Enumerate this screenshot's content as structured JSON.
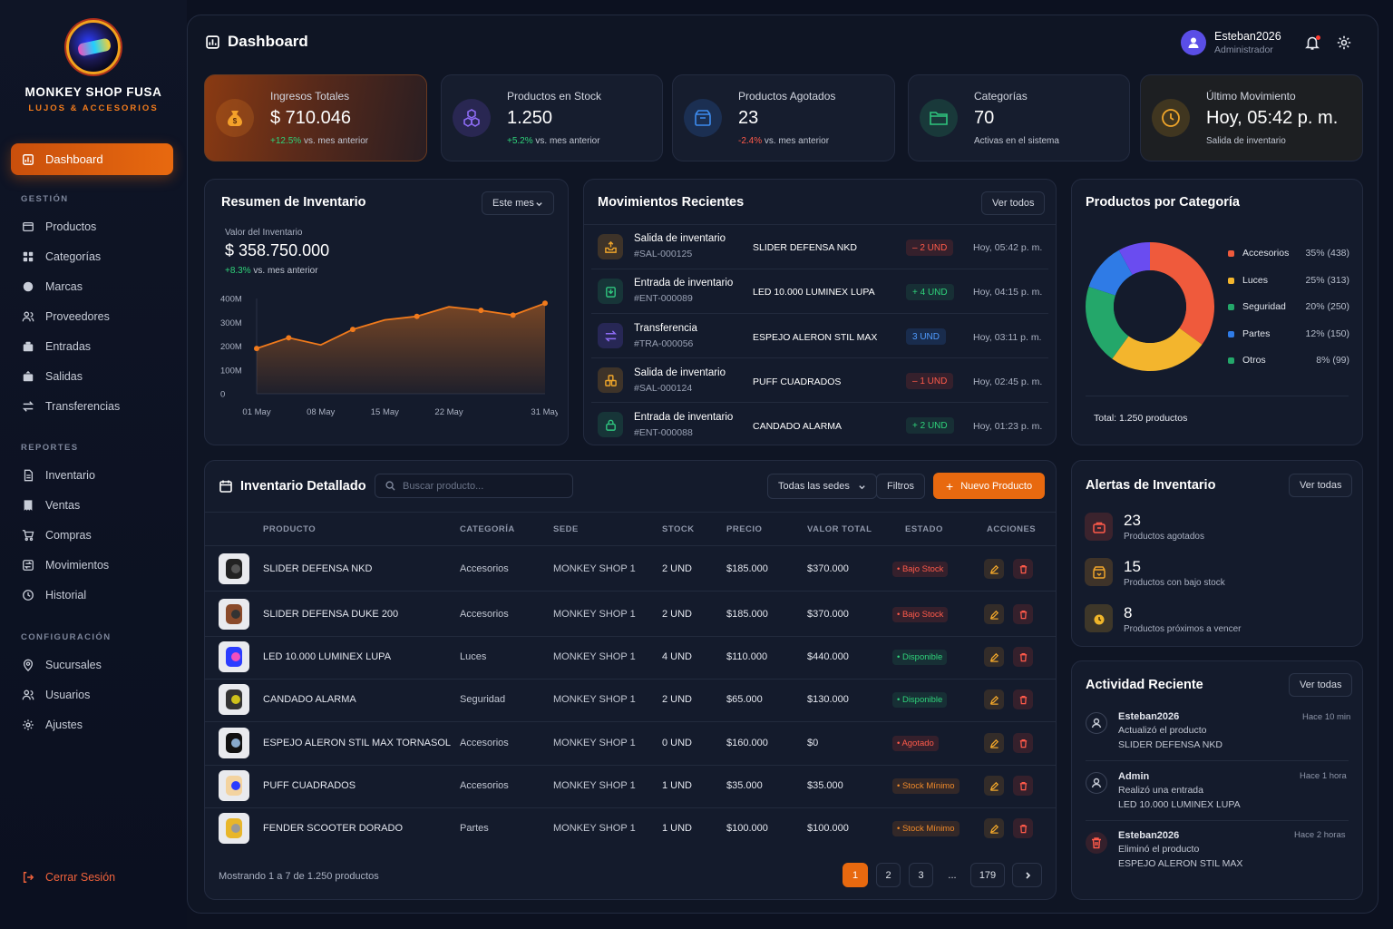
{
  "brand": {
    "name": "MONKEY SHOP FUSA",
    "tagline": "LUJOS & ACCESORIOS"
  },
  "nav": {
    "active": "Dashboard",
    "sections": [
      {
        "title": "GESTIÓN",
        "items": [
          "Productos",
          "Categorías",
          "Marcas",
          "Proveedores",
          "Entradas",
          "Salidas",
          "Transferencias"
        ]
      },
      {
        "title": "REPORTES",
        "items": [
          "Inventario",
          "Ventas",
          "Compras",
          "Movimientos",
          "Historial"
        ]
      },
      {
        "title": "CONFIGURACIÓN",
        "items": [
          "Sucursales",
          "Usuarios",
          "Ajustes"
        ]
      }
    ],
    "logout": "Cerrar Sesión"
  },
  "header": {
    "title": "Dashboard",
    "user_name": "Esteban2026",
    "user_role": "Administrador"
  },
  "kpis": [
    {
      "label": "Ingresos Totales",
      "value": "$ 710.046",
      "delta": "+12.5%",
      "delta_suffix": " vs. mes anterior",
      "icon": "money-bag-icon"
    },
    {
      "label": "Productos en Stock",
      "value": "1.250",
      "delta": "+5.2%",
      "delta_suffix": " vs. mes anterior",
      "icon": "cubes-icon"
    },
    {
      "label": "Productos Agotados",
      "value": "23",
      "delta": "-2.4%",
      "delta_suffix": " vs. mes anterior",
      "icon": "empty-box-icon"
    },
    {
      "label": "Categorías",
      "value": "70",
      "delta": "",
      "delta_suffix": "Activas en el sistema",
      "icon": "folder-icon"
    },
    {
      "label": "Último Movimiento",
      "value": "Hoy, 05:42 p. m.",
      "delta": "",
      "delta_suffix": "Salida de inventario",
      "icon": "clock-icon"
    }
  ],
  "inventory_summary": {
    "title": "Resumen de Inventario",
    "period": "Este mes",
    "value_label": "Valor del Inventario",
    "value": "$ 358.750.000",
    "delta": "+8.3%",
    "delta_suffix": " vs. mes anterior"
  },
  "chart_data": {
    "type": "area",
    "x": [
      "01 May",
      "04 May",
      "08 May",
      "11 May",
      "15 May",
      "18 May",
      "22 May",
      "25 May",
      "28 May",
      "31 May"
    ],
    "series": [
      {
        "values": [
          190,
          235,
          205,
          270,
          310,
          325,
          365,
          350,
          330,
          380
        ]
      }
    ],
    "x_ticks": [
      "01 May",
      "08 May",
      "15 May",
      "22 May",
      "31 May"
    ],
    "y_ticks": [
      "0",
      "100M",
      "200M",
      "300M",
      "400M"
    ],
    "ylim": [
      0,
      400
    ],
    "grid": false,
    "color": "#f07a1c"
  },
  "movements": {
    "title": "Movimientos Recientes",
    "view_all": "Ver todos",
    "rows": [
      {
        "type": "Salida de inventario",
        "code": "#SAL-000125",
        "product": "SLIDER DEFENSA NKD",
        "qty": "– 2 UND",
        "time": "Hoy, 05:42 p. m.",
        "kind": "out"
      },
      {
        "type": "Entrada de inventario",
        "code": "#ENT-000089",
        "product": "LED 10.000 LUMINEX LUPA",
        "qty": "+ 4 UND",
        "time": "Hoy, 04:15 p. m.",
        "kind": "in"
      },
      {
        "type": "Transferencia",
        "code": "#TRA-000056",
        "product": "ESPEJO ALERON STIL MAX",
        "qty": "3 UND",
        "time": "Hoy, 03:11 p. m.",
        "kind": "transfer"
      },
      {
        "type": "Salida de inventario",
        "code": "#SAL-000124",
        "product": "PUFF CUADRADOS",
        "qty": "– 1 UND",
        "time": "Hoy, 02:45 p. m.",
        "kind": "out"
      },
      {
        "type": "Entrada de inventario",
        "code": "#ENT-000088",
        "product": "CANDADO ALARMA",
        "qty": "+ 2 UND",
        "time": "Hoy, 01:23 p. m.",
        "kind": "in"
      }
    ]
  },
  "categories": {
    "title": "Productos por Categoría",
    "total": "Total: 1.250 productos",
    "items": [
      {
        "name": "Accesorios",
        "pct": "35% (438)",
        "share": 35,
        "color": "#ef5a3c"
      },
      {
        "name": "Luces",
        "pct": "25% (313)",
        "share": 25,
        "color": "#f3b52d"
      },
      {
        "name": "Seguridad",
        "pct": "20% (250)",
        "share": 20,
        "color": "#24a76a"
      },
      {
        "name": "Partes",
        "pct": "12% (150)",
        "share": 12,
        "color": "#2f7be6"
      },
      {
        "name": "Otros",
        "pct": "8% (99)",
        "share": 8,
        "color": "#6a4cf0"
      }
    ]
  },
  "inventory_table": {
    "title": "Inventario Detallado",
    "search_placeholder": "Buscar producto...",
    "filter_site": "Todas las sedes",
    "filters": "Filtros",
    "new_product": "Nuevo Producto",
    "columns": [
      "PRODUCTO",
      "CATEGORÍA",
      "SEDE",
      "STOCK",
      "PRECIO",
      "VALOR TOTAL",
      "ESTADO",
      "ACCIONES"
    ],
    "rows": [
      {
        "product": "SLIDER DEFENSA NKD",
        "category": "Accesorios",
        "site": "MONKEY SHOP 1",
        "stock": "2 UND",
        "price": "$185.000",
        "total": "$370.000",
        "status": "• Bajo Stock",
        "status_kind": "low"
      },
      {
        "product": "SLIDER DEFENSA DUKE 200",
        "category": "Accesorios",
        "site": "MONKEY SHOP 1",
        "stock": "2 UND",
        "price": "$185.000",
        "total": "$370.000",
        "status": "• Bajo Stock",
        "status_kind": "low"
      },
      {
        "product": "LED 10.000 LUMINEX LUPA",
        "category": "Luces",
        "site": "MONKEY SHOP 1",
        "stock": "4 UND",
        "price": "$110.000",
        "total": "$440.000",
        "status": "• Disponible",
        "status_kind": "ok"
      },
      {
        "product": "CANDADO ALARMA",
        "category": "Seguridad",
        "site": "MONKEY SHOP 1",
        "stock": "2 UND",
        "price": "$65.000",
        "total": "$130.000",
        "status": "• Disponible",
        "status_kind": "ok"
      },
      {
        "product": "ESPEJO ALERON STIL MAX TORNASOL",
        "category": "Accesorios",
        "site": "MONKEY SHOP 1",
        "stock": "0 UND",
        "price": "$160.000",
        "total": "$0",
        "status": "• Agotado",
        "status_kind": "out"
      },
      {
        "product": "PUFF CUADRADOS",
        "category": "Accesorios",
        "site": "MONKEY SHOP 1",
        "stock": "1 UND",
        "price": "$35.000",
        "total": "$35.000",
        "status": "• Stock Mínimo",
        "status_kind": "min"
      },
      {
        "product": "FENDER SCOOTER DORADO",
        "category": "Partes",
        "site": "MONKEY SHOP 1",
        "stock": "1 UND",
        "price": "$100.000",
        "total": "$100.000",
        "status": "• Stock Mínimo",
        "status_kind": "min"
      }
    ],
    "footer": "Mostrando 1 a 7 de 1.250 productos",
    "pages": [
      "1",
      "2",
      "3",
      "...",
      "179"
    ],
    "current_page": "1"
  },
  "alerts": {
    "title": "Alertas de Inventario",
    "view_all": "Ver todas",
    "items": [
      {
        "value": "23",
        "label": "Productos agotados"
      },
      {
        "value": "15",
        "label": "Productos con bajo stock"
      },
      {
        "value": "8",
        "label": "Productos próximos a vencer"
      }
    ]
  },
  "activity": {
    "title": "Actividad Reciente",
    "view_all": "Ver todas",
    "items": [
      {
        "user": "Esteban2026",
        "action": "Actualizó el producto",
        "target": "SLIDER DEFENSA NKD",
        "time": "Hace 10 min"
      },
      {
        "user": "Admin",
        "action": "Realizó una entrada",
        "target": "LED 10.000 LUMINEX LUPA",
        "time": "Hace 1 hora"
      },
      {
        "user": "Esteban2026",
        "action": "Eliminó el producto",
        "target": "ESPEJO ALERON STIL MAX",
        "time": "Hace 2 horas"
      }
    ]
  }
}
